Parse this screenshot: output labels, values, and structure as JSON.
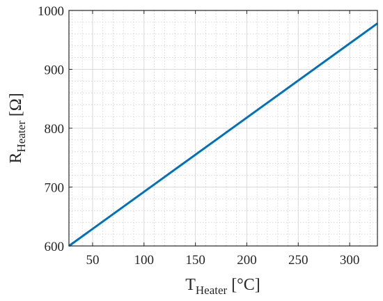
{
  "chart_data": {
    "type": "line",
    "xlabel": {
      "main": "T",
      "sub": "Heater",
      "unit": " [°C]"
    },
    "ylabel": {
      "main": "R",
      "sub": "Heater",
      "unit": " [Ω]"
    },
    "xlim": [
      27,
      327
    ],
    "ylim": [
      600,
      1000
    ],
    "x_ticks": [
      50,
      100,
      150,
      200,
      250,
      300
    ],
    "y_ticks": [
      600,
      700,
      800,
      900,
      1000
    ],
    "grid": true,
    "minor_grid": true,
    "series": [
      {
        "x": [
          27,
          327
        ],
        "y": [
          600,
          978
        ],
        "color": "#0072bd"
      }
    ]
  }
}
